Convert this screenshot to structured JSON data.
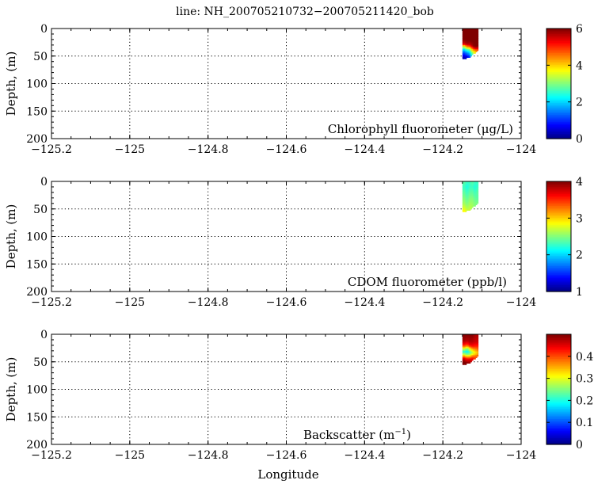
{
  "figure": {
    "title": "line: NH_200705210732−200705211420_bob",
    "xlabel": "Longitude"
  },
  "chart_data": [
    {
      "type": "heatmap",
      "title": "",
      "annotation": "Chlorophyll fluorometer (μg/L)",
      "xlabel": "",
      "ylabel": "Depth, (m)",
      "xlim": [
        -125.2,
        -124.0
      ],
      "ylim": [
        200,
        0
      ],
      "xticks": [
        "−125.2",
        "−125",
        "−124.8",
        "−124.6",
        "−124.4",
        "−124.2",
        "−124"
      ],
      "yticks": [
        "0",
        "50",
        "100",
        "150",
        "200"
      ],
      "grid": true,
      "colorbar": {
        "range": [
          0,
          6
        ],
        "ticks": [
          "0",
          "2",
          "4",
          "6"
        ],
        "colormap": "jet"
      },
      "data_region": {
        "lon_range": [
          -124.15,
          -124.11
        ],
        "depth_range": [
          0,
          55
        ]
      },
      "columns": [
        {
          "lon": -124.145,
          "max_depth": 55,
          "profile": [
            [
              0,
              6
            ],
            [
              10,
              6
            ],
            [
              20,
              6
            ],
            [
              28,
              5.5
            ],
            [
              33,
              3.5
            ],
            [
              38,
              2.2
            ],
            [
              43,
              1.4
            ],
            [
              50,
              0.6
            ],
            [
              55,
              0.2
            ]
          ]
        },
        {
          "lon": -124.138,
          "max_depth": 52,
          "profile": [
            [
              0,
              6
            ],
            [
              10,
              6
            ],
            [
              20,
              6
            ],
            [
              28,
              5.8
            ],
            [
              34,
              4.2
            ],
            [
              38,
              2.8
            ],
            [
              44,
              1.6
            ],
            [
              50,
              0.9
            ],
            [
              52,
              0.5
            ]
          ]
        },
        {
          "lon": -124.131,
          "max_depth": 50,
          "profile": [
            [
              0,
              6
            ],
            [
              12,
              6
            ],
            [
              22,
              6
            ],
            [
              30,
              5.5
            ],
            [
              35,
              4.0
            ],
            [
              40,
              2.6
            ],
            [
              46,
              1.8
            ],
            [
              50,
              1.2
            ]
          ]
        },
        {
          "lon": -124.124,
          "max_depth": 45,
          "profile": [
            [
              0,
              6
            ],
            [
              12,
              6
            ],
            [
              24,
              6
            ],
            [
              32,
              5.8
            ],
            [
              37,
              4.6
            ],
            [
              42,
              3.6
            ],
            [
              45,
              3.0
            ]
          ]
        },
        {
          "lon": -124.117,
          "max_depth": 42,
          "profile": [
            [
              0,
              6
            ],
            [
              15,
              6
            ],
            [
              25,
              6
            ],
            [
              33,
              6
            ],
            [
              38,
              5.0
            ],
            [
              42,
              4.0
            ]
          ]
        },
        {
          "lon": -124.112,
          "max_depth": 40,
          "profile": [
            [
              0,
              6
            ],
            [
              15,
              6
            ],
            [
              25,
              6
            ],
            [
              32,
              6
            ],
            [
              36,
              5.4
            ],
            [
              40,
              4.6
            ]
          ]
        }
      ]
    },
    {
      "type": "heatmap",
      "title": "",
      "annotation": "CDOM fluorometer (ppb/l)",
      "xlabel": "",
      "ylabel": "Depth, (m)",
      "xlim": [
        -125.2,
        -124.0
      ],
      "ylim": [
        200,
        0
      ],
      "xticks": [
        "−125.2",
        "−125",
        "−124.8",
        "−124.6",
        "−124.4",
        "−124.2",
        "−124"
      ],
      "yticks": [
        "0",
        "50",
        "100",
        "150",
        "200"
      ],
      "grid": true,
      "colorbar": {
        "range": [
          1,
          4
        ],
        "ticks": [
          "1",
          "2",
          "3",
          "4"
        ],
        "colormap": "jet"
      },
      "data_region": {
        "lon_range": [
          -124.15,
          -124.11
        ],
        "depth_range": [
          0,
          55
        ]
      },
      "columns": [
        {
          "lon": -124.145,
          "max_depth": 55,
          "profile": [
            [
              0,
              2.4
            ],
            [
              10,
              2.3
            ],
            [
              20,
              2.4
            ],
            [
              30,
              2.5
            ],
            [
              40,
              2.6
            ],
            [
              50,
              2.8
            ],
            [
              55,
              2.9
            ]
          ]
        },
        {
          "lon": -124.138,
          "max_depth": 52,
          "profile": [
            [
              0,
              2.3
            ],
            [
              10,
              2.2
            ],
            [
              20,
              2.3
            ],
            [
              30,
              2.4
            ],
            [
              40,
              2.5
            ],
            [
              52,
              2.7
            ]
          ]
        },
        {
          "lon": -124.131,
          "max_depth": 50,
          "profile": [
            [
              0,
              2.3
            ],
            [
              10,
              2.3
            ],
            [
              20,
              2.4
            ],
            [
              30,
              2.5
            ],
            [
              40,
              2.6
            ],
            [
              50,
              2.7
            ]
          ]
        },
        {
          "lon": -124.124,
          "max_depth": 45,
          "profile": [
            [
              0,
              2.4
            ],
            [
              10,
              2.3
            ],
            [
              20,
              2.4
            ],
            [
              30,
              2.5
            ],
            [
              45,
              2.6
            ]
          ]
        },
        {
          "lon": -124.117,
          "max_depth": 42,
          "profile": [
            [
              0,
              2.3
            ],
            [
              10,
              2.2
            ],
            [
              20,
              2.3
            ],
            [
              30,
              2.4
            ],
            [
              42,
              2.5
            ]
          ]
        },
        {
          "lon": -124.112,
          "max_depth": 40,
          "profile": [
            [
              0,
              2.3
            ],
            [
              10,
              2.3
            ],
            [
              20,
              2.4
            ],
            [
              30,
              2.4
            ],
            [
              40,
              2.5
            ]
          ]
        }
      ]
    },
    {
      "type": "heatmap",
      "title": "",
      "annotation": "Backscatter (m",
      "annotation_sup": "−1",
      "annotation_end": ")",
      "xlabel": "Longitude",
      "ylabel": "Depth, (m)",
      "xlim": [
        -125.2,
        -124.0
      ],
      "ylim": [
        200,
        0
      ],
      "xticks": [
        "−125.2",
        "−125",
        "−124.8",
        "−124.6",
        "−124.4",
        "−124.2",
        "−124"
      ],
      "yticks": [
        "0",
        "50",
        "100",
        "150",
        "200"
      ],
      "grid": true,
      "colorbar": {
        "range": [
          0,
          0.5
        ],
        "ticks": [
          "0",
          "0.1",
          "0.2",
          "0.3",
          "0.4"
        ],
        "colormap": "jet"
      },
      "data_region": {
        "lon_range": [
          -124.15,
          -124.11
        ],
        "depth_range": [
          0,
          55
        ]
      },
      "columns": [
        {
          "lon": -124.145,
          "max_depth": 55,
          "profile": [
            [
              0,
              0.5
            ],
            [
              12,
              0.48
            ],
            [
              20,
              0.42
            ],
            [
              26,
              0.3
            ],
            [
              32,
              0.2
            ],
            [
              38,
              0.32
            ],
            [
              44,
              0.45
            ],
            [
              50,
              0.5
            ],
            [
              55,
              0.5
            ]
          ]
        },
        {
          "lon": -124.138,
          "max_depth": 52,
          "profile": [
            [
              0,
              0.5
            ],
            [
              12,
              0.47
            ],
            [
              20,
              0.4
            ],
            [
              26,
              0.26
            ],
            [
              32,
              0.18
            ],
            [
              38,
              0.28
            ],
            [
              44,
              0.42
            ],
            [
              52,
              0.5
            ]
          ]
        },
        {
          "lon": -124.131,
          "max_depth": 50,
          "profile": [
            [
              0,
              0.5
            ],
            [
              12,
              0.48
            ],
            [
              20,
              0.44
            ],
            [
              27,
              0.3
            ],
            [
              33,
              0.22
            ],
            [
              39,
              0.32
            ],
            [
              45,
              0.44
            ],
            [
              50,
              0.48
            ]
          ]
        },
        {
          "lon": -124.124,
          "max_depth": 45,
          "profile": [
            [
              0,
              0.5
            ],
            [
              14,
              0.47
            ],
            [
              22,
              0.43
            ],
            [
              28,
              0.34
            ],
            [
              34,
              0.28
            ],
            [
              40,
              0.38
            ],
            [
              45,
              0.45
            ]
          ]
        },
        {
          "lon": -124.117,
          "max_depth": 42,
          "profile": [
            [
              0,
              0.48
            ],
            [
              14,
              0.46
            ],
            [
              22,
              0.42
            ],
            [
              28,
              0.36
            ],
            [
              34,
              0.32
            ],
            [
              42,
              0.4
            ]
          ]
        },
        {
          "lon": -124.112,
          "max_depth": 40,
          "profile": [
            [
              0,
              0.48
            ],
            [
              14,
              0.46
            ],
            [
              22,
              0.42
            ],
            [
              28,
              0.38
            ],
            [
              34,
              0.34
            ],
            [
              40,
              0.4
            ]
          ]
        }
      ]
    }
  ]
}
